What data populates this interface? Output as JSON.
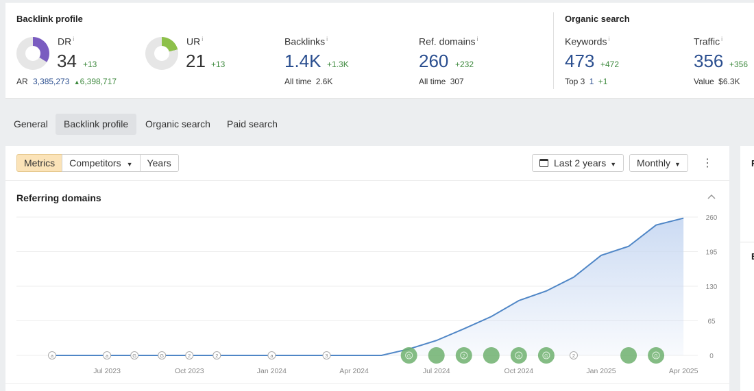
{
  "backlink_profile": {
    "title": "Backlink profile",
    "dr": {
      "label": "DR",
      "info": "i",
      "value": "34",
      "delta": "+13",
      "fill_fraction": 0.34,
      "color": "#7a5cc0"
    },
    "ur": {
      "label": "UR",
      "info": "i",
      "value": "21",
      "delta": "+13",
      "fill_fraction": 0.21,
      "color": "#8dc04a"
    },
    "ar": {
      "label": "AR",
      "value": "3,385,273",
      "delta": "6,398,717"
    },
    "backlinks": {
      "label": "Backlinks",
      "info": "i",
      "value": "1.4K",
      "delta": "+1.3K",
      "sub_label": "All time",
      "sub_value": "2.6K"
    },
    "ref_domains": {
      "label": "Ref. domains",
      "info": "i",
      "value": "260",
      "delta": "+232",
      "sub_label": "All time",
      "sub_value": "307"
    }
  },
  "organic_search": {
    "title": "Organic search",
    "keywords": {
      "label": "Keywords",
      "info": "i",
      "value": "473",
      "delta": "+472",
      "sub_label": "Top 3",
      "sub_value": "1",
      "sub_delta": "+1"
    },
    "traffic": {
      "label": "Traffic",
      "info": "i",
      "value": "356",
      "delta": "+356",
      "sub_label": "Value",
      "sub_value": "$6.3K"
    }
  },
  "tabs": [
    "General",
    "Backlink profile",
    "Organic search",
    "Paid search"
  ],
  "active_tab": "Backlink profile",
  "toolbar": {
    "segments": [
      "Metrics",
      "Competitors",
      "Years"
    ],
    "active_segment": "Metrics",
    "range": "Last 2 years",
    "interval": "Monthly",
    "more_icon": "more-vertical-icon"
  },
  "side_panel": {
    "label_1": "F",
    "label_2": "E"
  },
  "chart_data": {
    "type": "area",
    "title": "Referring domains",
    "xlabel": "",
    "ylabel": "",
    "x": [
      "2023-05",
      "2023-06",
      "2023-07",
      "2023-08",
      "2023-09",
      "2023-10",
      "2023-11",
      "2023-12",
      "2024-01",
      "2024-02",
      "2024-03",
      "2024-04",
      "2024-05",
      "2024-06",
      "2024-07",
      "2024-08",
      "2024-09",
      "2024-10",
      "2024-11",
      "2024-12",
      "2025-01",
      "2025-02",
      "2025-03",
      "2025-04"
    ],
    "values": [
      0,
      0,
      0,
      0,
      0,
      0,
      0,
      0,
      0,
      0,
      0,
      0,
      0,
      12,
      28,
      50,
      73,
      103,
      121,
      147,
      188,
      205,
      245,
      258
    ],
    "ylim": [
      0,
      260
    ],
    "y_ticks": [
      "0",
      "65",
      "130",
      "195",
      "260"
    ],
    "x_ticks": [
      {
        "x": "2023-07",
        "label": "Jul 2023"
      },
      {
        "x": "2023-10",
        "label": "Oct 2023"
      },
      {
        "x": "2024-01",
        "label": "Jan 2024"
      },
      {
        "x": "2024-04",
        "label": "Apr 2024"
      },
      {
        "x": "2024-07",
        "label": "Jul 2024"
      },
      {
        "x": "2024-10",
        "label": "Oct 2024"
      },
      {
        "x": "2025-01",
        "label": "Jan 2025"
      },
      {
        "x": "2025-04",
        "label": "Apr 2025"
      }
    ],
    "grid": true,
    "line_color": "#4f86c6",
    "fill_color": "#c9d9f2",
    "annotations": [
      {
        "x": "2023-05",
        "label": "a",
        "style": "small"
      },
      {
        "x": "2023-07",
        "label": "a",
        "style": "small"
      },
      {
        "x": "2023-08",
        "label": "G",
        "style": "small"
      },
      {
        "x": "2023-09",
        "label": "G",
        "style": "small"
      },
      {
        "x": "2023-10",
        "label": "2",
        "style": "small"
      },
      {
        "x": "2023-11",
        "label": "2",
        "style": "small"
      },
      {
        "x": "2024-01",
        "label": "a",
        "style": "small"
      },
      {
        "x": "2024-03",
        "label": "3",
        "style": "small"
      },
      {
        "x": "2024-06",
        "label": "G",
        "style": "big"
      },
      {
        "x": "2024-07",
        "label": "",
        "style": "big"
      },
      {
        "x": "2024-08",
        "label": "2",
        "style": "big"
      },
      {
        "x": "2024-09",
        "label": "",
        "style": "big"
      },
      {
        "x": "2024-10",
        "label": "a",
        "style": "big"
      },
      {
        "x": "2024-11",
        "label": "G",
        "style": "big"
      },
      {
        "x": "2024-12",
        "label": "2",
        "style": "small"
      },
      {
        "x": "2025-02",
        "label": "",
        "style": "big"
      },
      {
        "x": "2025-03",
        "label": "G",
        "style": "big"
      }
    ]
  }
}
